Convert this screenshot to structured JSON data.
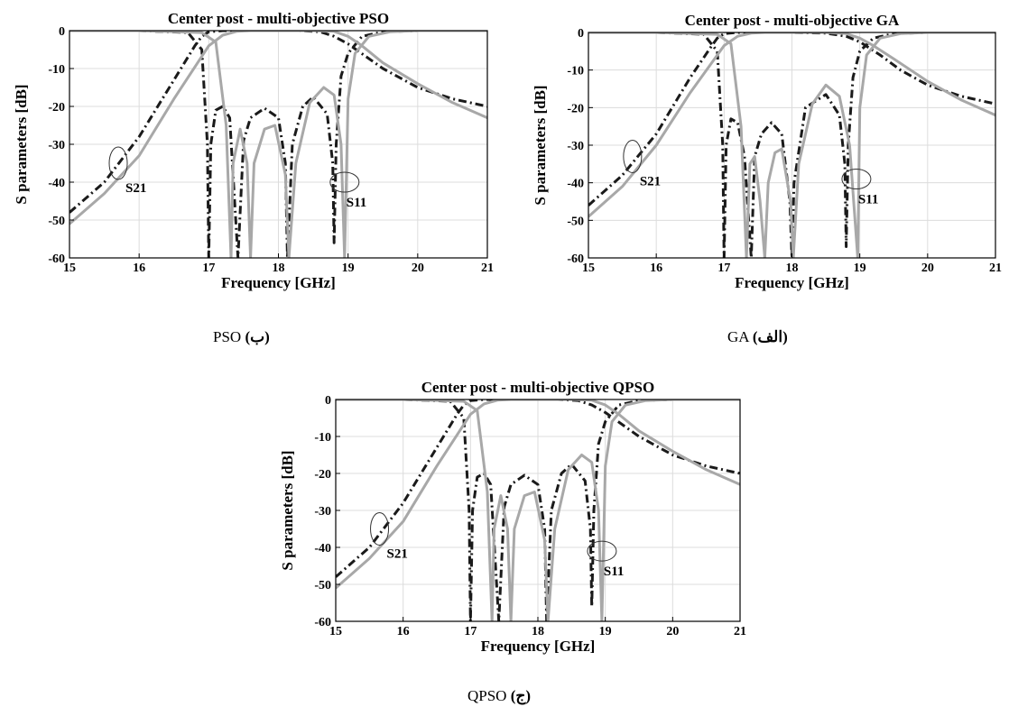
{
  "chart_data": [
    {
      "type": "line",
      "title": "Center post - multi-objective PSO",
      "xlabel": "Frequency [GHz]",
      "ylabel": "S parameters [dB]",
      "xlim": [
        15,
        21
      ],
      "ylim": [
        -60,
        0
      ],
      "xticks": [
        "15",
        "16",
        "17",
        "18",
        "19",
        "20",
        "21"
      ],
      "yticks": [
        "0",
        "-10",
        "-20",
        "-30",
        "-40",
        "-50",
        "-60"
      ],
      "grid": true,
      "caption": {
        "arabic": "(ب)",
        "latin": "PSO"
      },
      "annotations": [
        {
          "text": "S21",
          "at": [
            15.7,
            -35
          ]
        },
        {
          "text": "S11",
          "at": [
            18.95,
            -40
          ]
        }
      ],
      "series": [
        {
          "style": "dash-dot",
          "color": "#1a1a1a",
          "x": [
            15,
            15.5,
            16,
            16.5,
            16.8,
            16.9,
            17.0,
            17.2,
            17.4,
            17.6,
            17.8,
            18.0,
            18.3,
            18.6,
            18.8,
            19.0,
            19.5,
            20,
            20.5,
            21
          ],
          "y": [
            -48,
            -40,
            -28,
            -13,
            -4,
            -1.5,
            -0.3,
            0,
            0,
            0,
            0,
            0,
            0,
            -0.3,
            -1.5,
            -3.5,
            -10,
            -15,
            -18,
            -20
          ]
        },
        {
          "style": "dash-dot",
          "color": "#1a1a1a",
          "x": [
            15,
            16,
            16.7,
            16.9,
            16.98,
            17.0,
            17.03,
            17.1,
            17.2,
            17.3,
            17.42,
            17.5,
            17.6,
            17.8,
            18.0,
            18.1,
            18.13,
            18.2,
            18.35,
            18.5,
            18.7,
            18.78,
            18.8,
            18.83,
            18.9,
            19.0,
            19.2,
            19.5,
            20,
            21
          ],
          "y": [
            0,
            0,
            -0.5,
            -5,
            -30,
            -60,
            -30,
            -21,
            -20,
            -23,
            -60,
            -29,
            -23,
            -20.5,
            -23,
            -35,
            -60,
            -30,
            -20,
            -17.5,
            -22,
            -35,
            -56,
            -30,
            -12,
            -6,
            -1.5,
            -0.3,
            0,
            0
          ]
        },
        {
          "style": "solid",
          "color": "#a8a8a8",
          "x": [
            15,
            15.5,
            16,
            16.5,
            17.0,
            17.2,
            17.4,
            17.6,
            18.0,
            18.5,
            18.8,
            19.0,
            19.2,
            19.5,
            20,
            20.5,
            21
          ],
          "y": [
            -51,
            -43,
            -33,
            -18,
            -4,
            -1.2,
            -0.2,
            0,
            0,
            0,
            -0.2,
            -1.5,
            -4,
            -8.5,
            -14,
            -19,
            -23
          ]
        },
        {
          "style": "solid",
          "color": "#a8a8a8",
          "x": [
            15,
            16,
            16.9,
            17.1,
            17.25,
            17.32,
            17.35,
            17.45,
            17.55,
            17.6,
            17.65,
            17.8,
            17.95,
            18.1,
            18.15,
            18.25,
            18.45,
            18.65,
            18.8,
            18.9,
            18.95,
            19.0,
            19.1,
            19.3,
            19.6,
            20,
            21
          ],
          "y": [
            0,
            0,
            -0.5,
            -3,
            -25,
            -60,
            -35,
            -26,
            -35,
            -60,
            -35,
            -26,
            -25,
            -38,
            -60,
            -35,
            -19,
            -15,
            -17,
            -30,
            -60,
            -18,
            -6,
            -1.5,
            -0.3,
            0,
            0
          ]
        }
      ]
    },
    {
      "type": "line",
      "title": "Center post - multi-objective GA",
      "xlabel": "Frequency [GHz]",
      "ylabel": "S parameters [dB]",
      "xlim": [
        15,
        21
      ],
      "ylim": [
        -60,
        0
      ],
      "xticks": [
        "15",
        "16",
        "17",
        "18",
        "19",
        "20",
        "21"
      ],
      "yticks": [
        "0",
        "-10",
        "-20",
        "-30",
        "-40",
        "-50",
        "-60"
      ],
      "grid": true,
      "caption": {
        "arabic": "(الف)",
        "latin": "GA"
      },
      "annotations": [
        {
          "text": "S21",
          "at": [
            15.65,
            -33
          ]
        },
        {
          "text": "S11",
          "at": [
            18.95,
            -39
          ]
        }
      ],
      "series": [
        {
          "style": "dash-dot",
          "color": "#1a1a1a",
          "x": [
            15,
            15.5,
            16,
            16.5,
            16.8,
            16.9,
            17.0,
            17.2,
            17.4,
            17.6,
            18.0,
            18.5,
            18.8,
            19.0,
            19.3,
            19.6,
            20,
            20.5,
            21
          ],
          "y": [
            -46,
            -38,
            -27,
            -12,
            -4,
            -1.5,
            -0.3,
            0,
            0,
            0,
            0,
            -0.2,
            -1,
            -2.5,
            -6,
            -10,
            -14,
            -17,
            -19
          ]
        },
        {
          "style": "dash-dot",
          "color": "#1a1a1a",
          "x": [
            15,
            16,
            16.7,
            16.9,
            16.98,
            17.0,
            17.03,
            17.1,
            17.2,
            17.3,
            17.4,
            17.45,
            17.55,
            17.7,
            17.85,
            17.97,
            18.0,
            18.03,
            18.2,
            18.5,
            18.7,
            18.78,
            18.8,
            18.83,
            18.9,
            19.0,
            19.2,
            19.5,
            20,
            21
          ],
          "y": [
            0,
            0,
            -0.5,
            -5,
            -30,
            -60,
            -30,
            -23,
            -24,
            -33,
            -60,
            -33,
            -27,
            -24,
            -27,
            -45,
            -60,
            -40,
            -20,
            -16.5,
            -22,
            -35,
            -57,
            -30,
            -12,
            -5,
            -1.5,
            -0.3,
            0,
            0
          ]
        },
        {
          "style": "solid",
          "color": "#a8a8a8",
          "x": [
            15,
            15.5,
            16,
            16.5,
            17.0,
            17.2,
            17.4,
            17.6,
            18.0,
            18.5,
            18.8,
            19.0,
            19.2,
            19.5,
            20,
            20.5,
            21
          ],
          "y": [
            -49,
            -41,
            -30,
            -16,
            -3.5,
            -1,
            -0.2,
            0,
            0,
            0,
            -0.3,
            -1.5,
            -3.5,
            -7,
            -13,
            -18,
            -22
          ]
        },
        {
          "style": "solid",
          "color": "#a8a8a8",
          "x": [
            15,
            16,
            16.9,
            17.1,
            17.25,
            17.33,
            17.38,
            17.45,
            17.53,
            17.6,
            17.65,
            17.75,
            17.85,
            17.98,
            18.02,
            18.1,
            18.3,
            18.5,
            18.7,
            18.85,
            18.97,
            19.0,
            19.1,
            19.3,
            19.6,
            20,
            21
          ],
          "y": [
            0,
            0,
            -0.5,
            -3,
            -25,
            -60,
            -35,
            -33,
            -45,
            -60,
            -40,
            -32,
            -31,
            -45,
            -60,
            -35,
            -19,
            -14,
            -17,
            -30,
            -60,
            -20,
            -6,
            -1.5,
            -0.3,
            0,
            0
          ]
        }
      ]
    },
    {
      "type": "line",
      "title": "Center post - multi-objective QPSO",
      "xlabel": "Frequency [GHz]",
      "ylabel": "S parameters [dB]",
      "xlim": [
        15,
        21
      ],
      "ylim": [
        -60,
        0
      ],
      "xticks": [
        "15",
        "16",
        "17",
        "18",
        "19",
        "20",
        "21"
      ],
      "yticks": [
        "0",
        "-10",
        "-20",
        "-30",
        "-40",
        "-50",
        "-60"
      ],
      "grid": true,
      "caption": {
        "arabic": "(ج)",
        "latin": "QPSO"
      },
      "annotations": [
        {
          "text": "S21",
          "at": [
            15.65,
            -35
          ]
        },
        {
          "text": "S11",
          "at": [
            18.95,
            -41
          ]
        }
      ],
      "series": [
        {
          "style": "dash-dot",
          "color": "#1a1a1a",
          "x": [
            15,
            15.5,
            16,
            16.5,
            16.8,
            16.9,
            17.0,
            17.2,
            17.4,
            17.6,
            18.0,
            18.3,
            18.6,
            18.8,
            19.0,
            19.5,
            20,
            20.5,
            21
          ],
          "y": [
            -48,
            -40,
            -28,
            -13,
            -4,
            -1.5,
            -0.3,
            0,
            0,
            0,
            0,
            0,
            -0.3,
            -1.5,
            -3.5,
            -10,
            -15,
            -18,
            -20
          ]
        },
        {
          "style": "dash-dot",
          "color": "#1a1a1a",
          "x": [
            15,
            16,
            16.7,
            16.9,
            16.98,
            17.0,
            17.03,
            17.1,
            17.2,
            17.3,
            17.42,
            17.5,
            17.6,
            17.8,
            18.0,
            18.1,
            18.13,
            18.2,
            18.35,
            18.5,
            18.7,
            18.78,
            18.8,
            18.83,
            18.9,
            19.0,
            19.2,
            19.5,
            20,
            21
          ],
          "y": [
            0,
            0,
            -0.5,
            -5,
            -30,
            -60,
            -30,
            -21,
            -20,
            -23,
            -60,
            -29,
            -23,
            -20.5,
            -23,
            -35,
            -60,
            -30,
            -20,
            -17.5,
            -22,
            -35,
            -56,
            -30,
            -12,
            -6,
            -1.5,
            -0.3,
            0,
            0
          ]
        },
        {
          "style": "solid",
          "color": "#a8a8a8",
          "x": [
            15,
            15.5,
            16,
            16.5,
            17.0,
            17.2,
            17.4,
            17.6,
            18.0,
            18.5,
            18.8,
            19.0,
            19.2,
            19.5,
            20,
            20.5,
            21
          ],
          "y": [
            -51,
            -43,
            -33,
            -18,
            -4,
            -1.2,
            -0.2,
            0,
            0,
            0,
            -0.2,
            -1.5,
            -4,
            -8.5,
            -14,
            -19,
            -23
          ]
        },
        {
          "style": "solid",
          "color": "#a8a8a8",
          "x": [
            15,
            16,
            16.9,
            17.1,
            17.25,
            17.32,
            17.35,
            17.45,
            17.55,
            17.6,
            17.65,
            17.8,
            17.95,
            18.1,
            18.15,
            18.25,
            18.45,
            18.65,
            18.8,
            18.9,
            18.95,
            19.0,
            19.1,
            19.3,
            19.6,
            20,
            21
          ],
          "y": [
            0,
            0,
            -0.5,
            -3,
            -25,
            -60,
            -35,
            -26,
            -35,
            -60,
            -35,
            -26,
            -25,
            -38,
            -60,
            -35,
            -19,
            -15,
            -17,
            -30,
            -60,
            -18,
            -6,
            -1.5,
            -0.3,
            0,
            0
          ]
        }
      ]
    }
  ]
}
